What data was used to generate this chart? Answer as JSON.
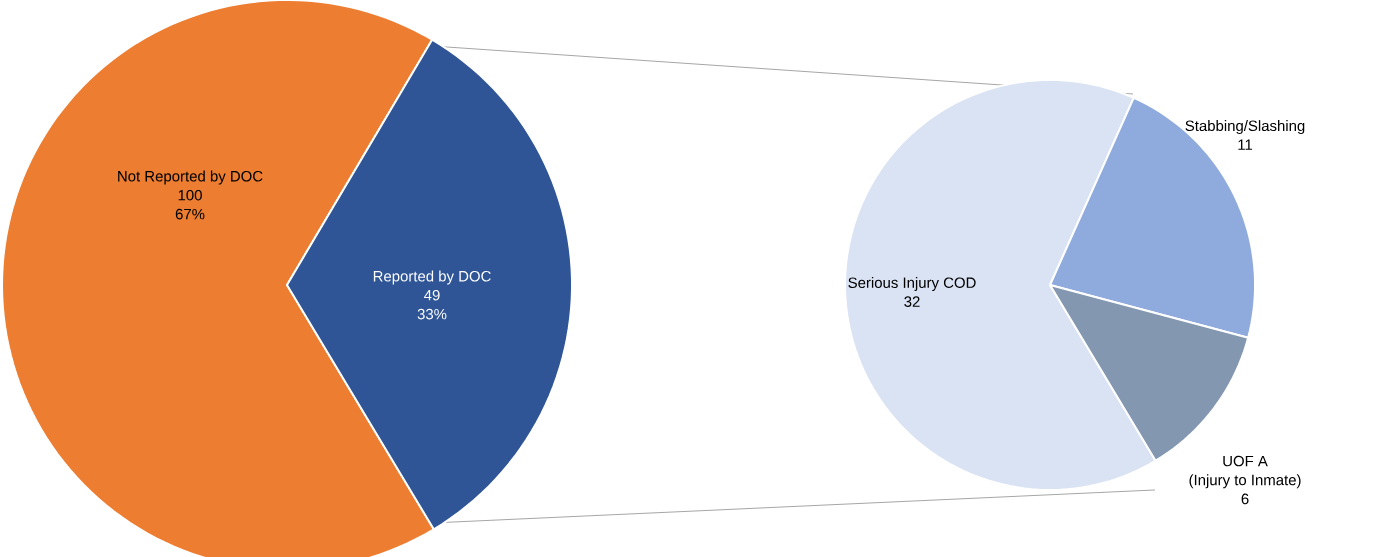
{
  "chart_data": [
    {
      "type": "pie",
      "categories": [
        "Not Reported by DOC",
        "Reported by DOC"
      ],
      "values": [
        100,
        49
      ],
      "colors": [
        "#ed7d31",
        "#2f5597"
      ],
      "data_labels": true,
      "annotations": [
        "67%",
        "33%"
      ]
    },
    {
      "type": "pie",
      "categories": [
        "Serious Injury COD",
        "Stabbing/Slashing",
        "UOF A\n(Injury to Inmate)"
      ],
      "values": [
        32,
        11,
        6
      ],
      "colors": [
        "#dae3f3",
        "#8faadc",
        "#8497b0"
      ],
      "data_labels": true
    }
  ]
}
